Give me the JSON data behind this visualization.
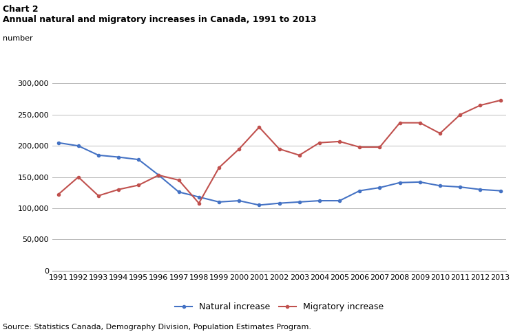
{
  "title_line1": "Chart 2",
  "title_line2": "Annual natural and migratory increases in Canada, 1991 to 2013",
  "ylabel": "number",
  "source": "Source: Statistics Canada, Demography Division, Population Estimates Program.",
  "years": [
    1991,
    1992,
    1993,
    1994,
    1995,
    1996,
    1997,
    1998,
    1999,
    2000,
    2001,
    2002,
    2003,
    2004,
    2005,
    2006,
    2007,
    2008,
    2009,
    2010,
    2011,
    2012,
    2013
  ],
  "natural_increase": [
    205000,
    200000,
    185000,
    182000,
    178000,
    153000,
    126000,
    118000,
    110000,
    112000,
    105000,
    108000,
    110000,
    112000,
    112000,
    128000,
    133000,
    141000,
    142000,
    136000,
    134000,
    130000,
    128000
  ],
  "migratory_increase": [
    122000,
    150000,
    120000,
    130000,
    137000,
    153000,
    145000,
    108000,
    165000,
    195000,
    230000,
    195000,
    185000,
    205000,
    207000,
    198000,
    198000,
    237000,
    237000,
    220000,
    250000,
    265000,
    273000
  ],
  "natural_color": "#4472C4",
  "migratory_color": "#C0504D",
  "ylim": [
    0,
    300000
  ],
  "yticks": [
    0,
    50000,
    100000,
    150000,
    200000,
    250000,
    300000
  ],
  "legend_natural": "Natural increase",
  "legend_migratory": "Migratory increase",
  "bg_color": "#FFFFFF",
  "grid_color": "#BBBBBB",
  "title1_fontsize": 9,
  "title2_fontsize": 9,
  "source_fontsize": 8,
  "tick_fontsize": 8,
  "ylabel_fontsize": 8
}
